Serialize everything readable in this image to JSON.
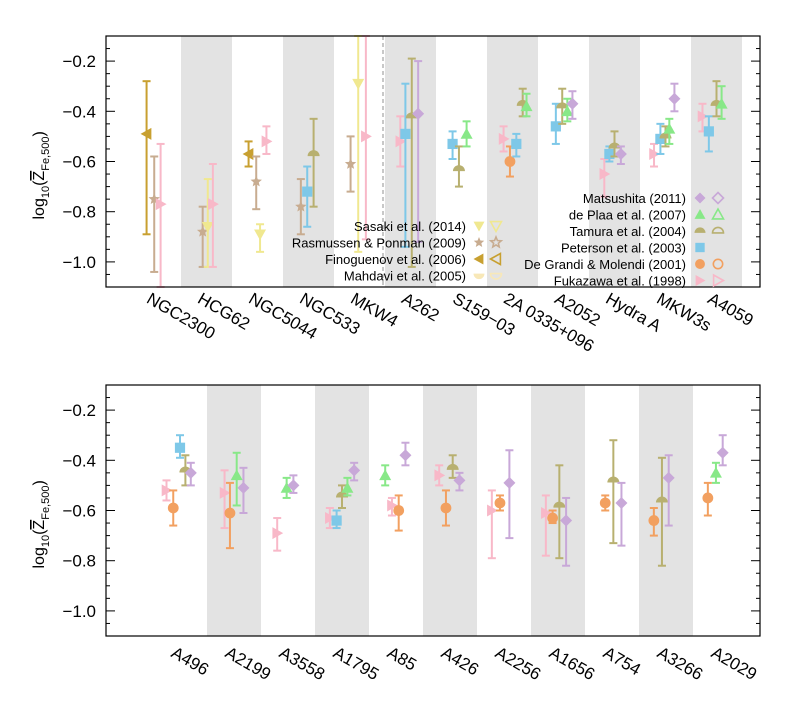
{
  "colors": {
    "Matsushita (2011)": "#c8a8d8",
    "de Plaa et al. (2007)": "#88e888",
    "Tamura et al. (2004)": "#b8b070",
    "Peterson et al. (2003)": "#7ec8e8",
    "De Grandi & Molendi (2001)": "#f2a060",
    "Fukazawa et al. (1998)": "#f8b8c8",
    "Sasaki et al. (2014)": "#f0e890",
    "Rasmussen & Ponman (2009)": "#c8ac90",
    "Finoguenov et al. (2006)": "#c8a030",
    "Mahdavi et al. (2005)": "#f8e8b8"
  },
  "chart_data": [
    {
      "type": "scatter",
      "ylabel": "log10(Z̄Fe,500)",
      "ylabel_parts": {
        "main": "log",
        "sub1": "10",
        "paren_open": "(",
        "zbar": "Z",
        "sub2": "Fe,500",
        "paren_close": ")"
      },
      "ylim": [
        -1.1,
        -0.1
      ],
      "yticks": [
        -1.0,
        -0.8,
        -0.6,
        -0.4,
        -0.2
      ],
      "ytick_labels": [
        "−1.0",
        "−0.8",
        "−0.6",
        "−0.4",
        "−0.2"
      ],
      "categories": [
        "NGC2300",
        "HCG62",
        "NGC5044",
        "NGC533",
        "MKW4",
        "A262",
        "S159−03",
        "2A 0335+096",
        "A2052",
        "Hydra A",
        "MKW3s",
        "A4059"
      ],
      "shaded": [
        1,
        3,
        5,
        7,
        9,
        11
      ],
      "legend_position": "bottom-right and middle",
      "legend": [
        {
          "label": "Matsushita (2011)",
          "marker": "diamond"
        },
        {
          "label": "de Plaa et al. (2007)",
          "marker": "triangle-up"
        },
        {
          "label": "Tamura et al. (2004)",
          "marker": "half-circle"
        },
        {
          "label": "Peterson et al. (2003)",
          "marker": "square"
        },
        {
          "label": "De Grandi & Molendi (2001)",
          "marker": "circle"
        },
        {
          "label": "Fukazawa et al. (1998)",
          "marker": "triangle-right"
        },
        {
          "label": "Sasaki et al. (2014)",
          "marker": "triangle-down"
        },
        {
          "label": "Rasmussen & Ponman (2009)",
          "marker": "star"
        },
        {
          "label": "Finoguenov et al. (2006)",
          "marker": "triangle-left"
        },
        {
          "label": "Mahdavi et al. (2005)",
          "marker": "half-circle-down"
        }
      ],
      "points": [
        {
          "cat": 0,
          "off": -0.35,
          "series": "Finoguenov et al. (2006)",
          "y": -0.49,
          "lo": -0.89,
          "hi": -0.28
        },
        {
          "cat": 0,
          "off": -0.05,
          "series": "Rasmussen & Ponman (2009)",
          "y": -0.75,
          "lo": -1.04,
          "hi": -0.58
        },
        {
          "cat": 0,
          "off": 0.2,
          "series": "Fukazawa et al. (1998)",
          "y": -0.77,
          "lo": -1.1,
          "hi": -0.53
        },
        {
          "cat": 1,
          "off": -0.15,
          "series": "Rasmussen & Ponman (2009)",
          "y": -0.88,
          "lo": -1.02,
          "hi": -0.78
        },
        {
          "cat": 1,
          "off": 0.05,
          "series": "Sasaki et al. (2014)",
          "y": -0.86,
          "lo": -1.02,
          "hi": -0.67
        },
        {
          "cat": 1,
          "off": 0.25,
          "series": "Fukazawa et al. (1998)",
          "y": -0.77,
          "lo": -1.02,
          "hi": -0.61
        },
        {
          "cat": 2,
          "off": -0.35,
          "series": "Finoguenov et al. (2006)",
          "y": -0.57,
          "lo": -0.62,
          "hi": -0.52
        },
        {
          "cat": 2,
          "off": -0.05,
          "series": "Rasmussen & Ponman (2009)",
          "y": -0.68,
          "lo": -0.79,
          "hi": -0.58
        },
        {
          "cat": 2,
          "off": 0.1,
          "series": "Sasaki et al. (2014)",
          "y": -0.89,
          "lo": -0.96,
          "hi": -0.85
        },
        {
          "cat": 2,
          "off": 0.35,
          "series": "Fukazawa et al. (1998)",
          "y": -0.52,
          "lo": -0.57,
          "hi": -0.46
        },
        {
          "cat": 3,
          "off": -0.3,
          "series": "Rasmussen & Ponman (2009)",
          "y": -0.78,
          "lo": -0.89,
          "hi": -0.67
        },
        {
          "cat": 3,
          "off": -0.05,
          "series": "Peterson et al. (2003)",
          "y": -0.72,
          "lo": -0.86,
          "hi": -0.62
        },
        {
          "cat": 3,
          "off": 0.2,
          "series": "Tamura et al. (2004)",
          "y": -0.57,
          "lo": -0.78,
          "hi": -0.43
        },
        {
          "cat": 4,
          "off": -0.35,
          "series": "Rasmussen & Ponman (2009)",
          "y": -0.61,
          "lo": -0.72,
          "hi": -0.5
        },
        {
          "cat": 4,
          "off": -0.05,
          "series": "Sasaki et al. (2014)",
          "y": -0.29,
          "lo": -0.96,
          "hi": -0.1
        },
        {
          "cat": 4,
          "off": 0.25,
          "series": "Fukazawa et al. (1998)",
          "y": -0.5,
          "lo": -0.91,
          "hi": -0.1
        },
        {
          "cat": 5,
          "off": -0.4,
          "series": "Fukazawa et al. (1998)",
          "y": -0.52,
          "lo": -0.62,
          "hi": -0.42
        },
        {
          "cat": 5,
          "off": -0.2,
          "series": "Peterson et al. (2003)",
          "y": -0.49,
          "lo": -0.94,
          "hi": -0.29
        },
        {
          "cat": 5,
          "off": 0.05,
          "series": "Tamura et al. (2004)",
          "y": -0.42,
          "lo": -1.02,
          "hi": -0.19
        },
        {
          "cat": 5,
          "off": 0.3,
          "series": "Matsushita (2011)",
          "y": -0.41,
          "lo": -0.92,
          "hi": -0.2
        },
        {
          "cat": 6,
          "off": -0.35,
          "series": "Peterson et al. (2003)",
          "y": -0.53,
          "lo": -0.59,
          "hi": -0.48
        },
        {
          "cat": 6,
          "off": -0.1,
          "series": "Tamura et al. (2004)",
          "y": -0.63,
          "lo": -0.7,
          "hi": -0.54
        },
        {
          "cat": 6,
          "off": 0.2,
          "series": "de Plaa et al. (2007)",
          "y": -0.49,
          "lo": -0.54,
          "hi": -0.44
        },
        {
          "cat": 7,
          "off": -0.35,
          "series": "Fukazawa et al. (1998)",
          "y": -0.51,
          "lo": -0.56,
          "hi": -0.46
        },
        {
          "cat": 7,
          "off": -0.1,
          "series": "De Grandi & Molendi (2001)",
          "y": -0.6,
          "lo": -0.66,
          "hi": -0.54
        },
        {
          "cat": 7,
          "off": 0.15,
          "series": "Peterson et al. (2003)",
          "y": -0.53,
          "lo": -0.58,
          "hi": -0.49
        },
        {
          "cat": 7,
          "off": 0.4,
          "series": "Tamura et al. (2004)",
          "y": -0.37,
          "lo": -0.42,
          "hi": -0.31
        },
        {
          "cat": 7,
          "off": 0.55,
          "series": "de Plaa et al. (2007)",
          "y": -0.38,
          "lo": -0.42,
          "hi": -0.33
        },
        {
          "cat": 8,
          "off": -0.3,
          "series": "Peterson et al. (2003)",
          "y": -0.46,
          "lo": -0.53,
          "hi": -0.37
        },
        {
          "cat": 8,
          "off": -0.05,
          "series": "Tamura et al. (2004)",
          "y": -0.38,
          "lo": -0.45,
          "hi": -0.31
        },
        {
          "cat": 8,
          "off": 0.15,
          "series": "de Plaa et al. (2007)",
          "y": -0.4,
          "lo": -0.44,
          "hi": -0.35
        },
        {
          "cat": 8,
          "off": 0.35,
          "series": "Matsushita (2011)",
          "y": -0.37,
          "lo": -0.43,
          "hi": -0.32
        },
        {
          "cat": 9,
          "off": -0.4,
          "series": "Fukazawa et al. (1998)",
          "y": -0.65,
          "lo": -0.74,
          "hi": -0.59
        },
        {
          "cat": 9,
          "off": -0.2,
          "series": "Peterson et al. (2003)",
          "y": -0.57,
          "lo": -0.6,
          "hi": -0.54
        },
        {
          "cat": 9,
          "off": 0.0,
          "series": "Tamura et al. (2004)",
          "y": -0.54,
          "lo": -0.58,
          "hi": -0.48
        },
        {
          "cat": 9,
          "off": 0.25,
          "series": "Matsushita (2011)",
          "y": -0.57,
          "lo": -0.61,
          "hi": -0.54
        },
        {
          "cat": 10,
          "off": -0.45,
          "series": "Fukazawa et al. (1998)",
          "y": -0.57,
          "lo": -0.62,
          "hi": -0.53
        },
        {
          "cat": 10,
          "off": -0.2,
          "series": "Peterson et al. (2003)",
          "y": -0.51,
          "lo": -0.57,
          "hi": -0.45
        },
        {
          "cat": 10,
          "off": 0.0,
          "series": "Tamura et al. (2004)",
          "y": -0.5,
          "lo": -0.54,
          "hi": -0.46
        },
        {
          "cat": 10,
          "off": 0.15,
          "series": "de Plaa et al. (2007)",
          "y": -0.47,
          "lo": -0.53,
          "hi": -0.43
        },
        {
          "cat": 10,
          "off": 0.35,
          "series": "Matsushita (2011)",
          "y": -0.35,
          "lo": -0.4,
          "hi": -0.29
        },
        {
          "cat": 11,
          "off": -0.55,
          "series": "Fukazawa et al. (1998)",
          "y": -0.42,
          "lo": -0.48,
          "hi": -0.37
        },
        {
          "cat": 11,
          "off": -0.3,
          "series": "Peterson et al. (2003)",
          "y": -0.48,
          "lo": -0.56,
          "hi": -0.42
        },
        {
          "cat": 11,
          "off": 0.0,
          "series": "Tamura et al. (2004)",
          "y": -0.37,
          "lo": -0.42,
          "hi": -0.28
        },
        {
          "cat": 11,
          "off": 0.2,
          "series": "de Plaa et al. (2007)",
          "y": -0.37,
          "lo": -0.43,
          "hi": -0.3
        }
      ]
    },
    {
      "type": "scatter",
      "ylabel": "log10(Z̄Fe,500)",
      "ylabel_parts": {
        "main": "log",
        "sub1": "10",
        "paren_open": "(",
        "zbar": "Z",
        "sub2": "Fe,500",
        "paren_close": ")"
      },
      "ylim": [
        -1.1,
        -0.1
      ],
      "yticks": [
        -1.0,
        -0.8,
        -0.6,
        -0.4,
        -0.2
      ],
      "ytick_labels": [
        "−1.0",
        "−0.8",
        "−0.6",
        "−0.4",
        "−0.2"
      ],
      "categories": [
        "A496",
        "A2199",
        "A3558",
        "A1795",
        "A85",
        "A426",
        "A2256",
        "A1656",
        "A754",
        "A3266",
        "A2029"
      ],
      "shaded": [
        1,
        3,
        5,
        7,
        9
      ],
      "points": [
        {
          "cat": 0,
          "off": -0.5,
          "series": "Fukazawa et al. (1998)",
          "y": -0.52,
          "lo": -0.56,
          "hi": -0.48
        },
        {
          "cat": 0,
          "off": -0.25,
          "series": "De Grandi & Molendi (2001)",
          "y": -0.59,
          "lo": -0.66,
          "hi": -0.52
        },
        {
          "cat": 0,
          "off": 0.0,
          "series": "Peterson et al. (2003)",
          "y": -0.35,
          "lo": -0.39,
          "hi": -0.3
        },
        {
          "cat": 0,
          "off": 0.2,
          "series": "Tamura et al. (2004)",
          "y": -0.44,
          "lo": -0.5,
          "hi": -0.38
        },
        {
          "cat": 0,
          "off": 0.4,
          "series": "Matsushita (2011)",
          "y": -0.45,
          "lo": -0.5,
          "hi": -0.41
        },
        {
          "cat": 1,
          "off": -0.35,
          "series": "Fukazawa et al. (1998)",
          "y": -0.53,
          "lo": -0.67,
          "hi": -0.44
        },
        {
          "cat": 1,
          "off": -0.15,
          "series": "De Grandi & Molendi (2001)",
          "y": -0.61,
          "lo": -0.75,
          "hi": -0.49
        },
        {
          "cat": 1,
          "off": 0.1,
          "series": "de Plaa et al. (2007)",
          "y": -0.46,
          "lo": -0.58,
          "hi": -0.37
        },
        {
          "cat": 1,
          "off": 0.35,
          "series": "Matsushita (2011)",
          "y": -0.51,
          "lo": -0.61,
          "hi": -0.43
        },
        {
          "cat": 2,
          "off": -0.4,
          "series": "Fukazawa et al. (1998)",
          "y": -0.69,
          "lo": -0.76,
          "hi": -0.63
        },
        {
          "cat": 2,
          "off": -0.05,
          "series": "de Plaa et al. (2007)",
          "y": -0.51,
          "lo": -0.55,
          "hi": -0.47
        },
        {
          "cat": 2,
          "off": 0.2,
          "series": "Matsushita (2011)",
          "y": -0.5,
          "lo": -0.53,
          "hi": -0.46
        },
        {
          "cat": 3,
          "off": -0.45,
          "series": "Fukazawa et al. (1998)",
          "y": -0.63,
          "lo": -0.67,
          "hi": -0.59
        },
        {
          "cat": 3,
          "off": -0.2,
          "series": "Peterson et al. (2003)",
          "y": -0.64,
          "lo": -0.67,
          "hi": -0.6
        },
        {
          "cat": 3,
          "off": 0.0,
          "series": "Tamura et al. (2004)",
          "y": -0.54,
          "lo": -0.59,
          "hi": -0.5
        },
        {
          "cat": 3,
          "off": 0.2,
          "series": "de Plaa et al. (2007)",
          "y": -0.51,
          "lo": -0.54,
          "hi": -0.47
        },
        {
          "cat": 3,
          "off": 0.45,
          "series": "Matsushita (2011)",
          "y": -0.44,
          "lo": -0.48,
          "hi": -0.41
        },
        {
          "cat": 4,
          "off": -0.4,
          "series": "de Plaa et al. (2007)",
          "y": -0.46,
          "lo": -0.5,
          "hi": -0.42
        },
        {
          "cat": 4,
          "off": -0.15,
          "series": "Fukazawa et al. (1998)",
          "y": -0.58,
          "lo": -0.62,
          "hi": -0.55
        },
        {
          "cat": 4,
          "off": 0.1,
          "series": "De Grandi & Molendi (2001)",
          "y": -0.6,
          "lo": -0.68,
          "hi": -0.54
        },
        {
          "cat": 4,
          "off": 0.35,
          "series": "Matsushita (2011)",
          "y": -0.38,
          "lo": -0.42,
          "hi": -0.33
        },
        {
          "cat": 5,
          "off": -0.4,
          "series": "Fukazawa et al. (1998)",
          "y": -0.46,
          "lo": -0.5,
          "hi": -0.42
        },
        {
          "cat": 5,
          "off": -0.15,
          "series": "De Grandi & Molendi (2001)",
          "y": -0.59,
          "lo": -0.66,
          "hi": -0.52
        },
        {
          "cat": 5,
          "off": 0.1,
          "series": "Tamura et al. (2004)",
          "y": -0.43,
          "lo": -0.47,
          "hi": -0.38
        },
        {
          "cat": 5,
          "off": 0.35,
          "series": "Matsushita (2011)",
          "y": -0.48,
          "lo": -0.52,
          "hi": -0.45
        },
        {
          "cat": 6,
          "off": -0.45,
          "series": "Fukazawa et al. (1998)",
          "y": -0.6,
          "lo": -0.79,
          "hi": -0.52
        },
        {
          "cat": 6,
          "off": -0.15,
          "series": "De Grandi & Molendi (2001)",
          "y": -0.57,
          "lo": -0.6,
          "hi": -0.54
        },
        {
          "cat": 6,
          "off": 0.2,
          "series": "Matsushita (2011)",
          "y": -0.49,
          "lo": -0.71,
          "hi": -0.36
        },
        {
          "cat": 7,
          "off": -0.45,
          "series": "Fukazawa et al. (1998)",
          "y": -0.61,
          "lo": -0.78,
          "hi": -0.54
        },
        {
          "cat": 7,
          "off": -0.2,
          "series": "De Grandi & Molendi (2001)",
          "y": -0.63,
          "lo": -0.65,
          "hi": -0.6
        },
        {
          "cat": 7,
          "off": 0.05,
          "series": "Tamura et al. (2004)",
          "y": -0.58,
          "lo": -0.79,
          "hi": -0.42
        },
        {
          "cat": 7,
          "off": 0.3,
          "series": "Matsushita (2011)",
          "y": -0.64,
          "lo": -0.82,
          "hi": -0.55
        },
        {
          "cat": 8,
          "off": -0.25,
          "series": "De Grandi & Molendi (2001)",
          "y": -0.57,
          "lo": -0.6,
          "hi": -0.54
        },
        {
          "cat": 8,
          "off": 0.05,
          "series": "Tamura et al. (2004)",
          "y": -0.48,
          "lo": -0.73,
          "hi": -0.32
        },
        {
          "cat": 8,
          "off": 0.35,
          "series": "Matsushita (2011)",
          "y": -0.57,
          "lo": -0.74,
          "hi": -0.49
        },
        {
          "cat": 9,
          "off": -0.45,
          "series": "De Grandi & Molendi (2001)",
          "y": -0.64,
          "lo": -0.7,
          "hi": -0.59
        },
        {
          "cat": 9,
          "off": -0.15,
          "series": "Tamura et al. (2004)",
          "y": -0.56,
          "lo": -0.82,
          "hi": -0.39
        },
        {
          "cat": 9,
          "off": 0.1,
          "series": "Matsushita (2011)",
          "y": -0.47,
          "lo": -0.66,
          "hi": -0.38
        },
        {
          "cat": 10,
          "off": -0.45,
          "series": "De Grandi & Molendi (2001)",
          "y": -0.55,
          "lo": -0.62,
          "hi": -0.49
        },
        {
          "cat": 10,
          "off": -0.15,
          "series": "de Plaa et al. (2007)",
          "y": -0.45,
          "lo": -0.49,
          "hi": -0.41
        },
        {
          "cat": 10,
          "off": 0.1,
          "series": "Matsushita (2011)",
          "y": -0.37,
          "lo": -0.42,
          "hi": -0.3
        }
      ]
    }
  ]
}
